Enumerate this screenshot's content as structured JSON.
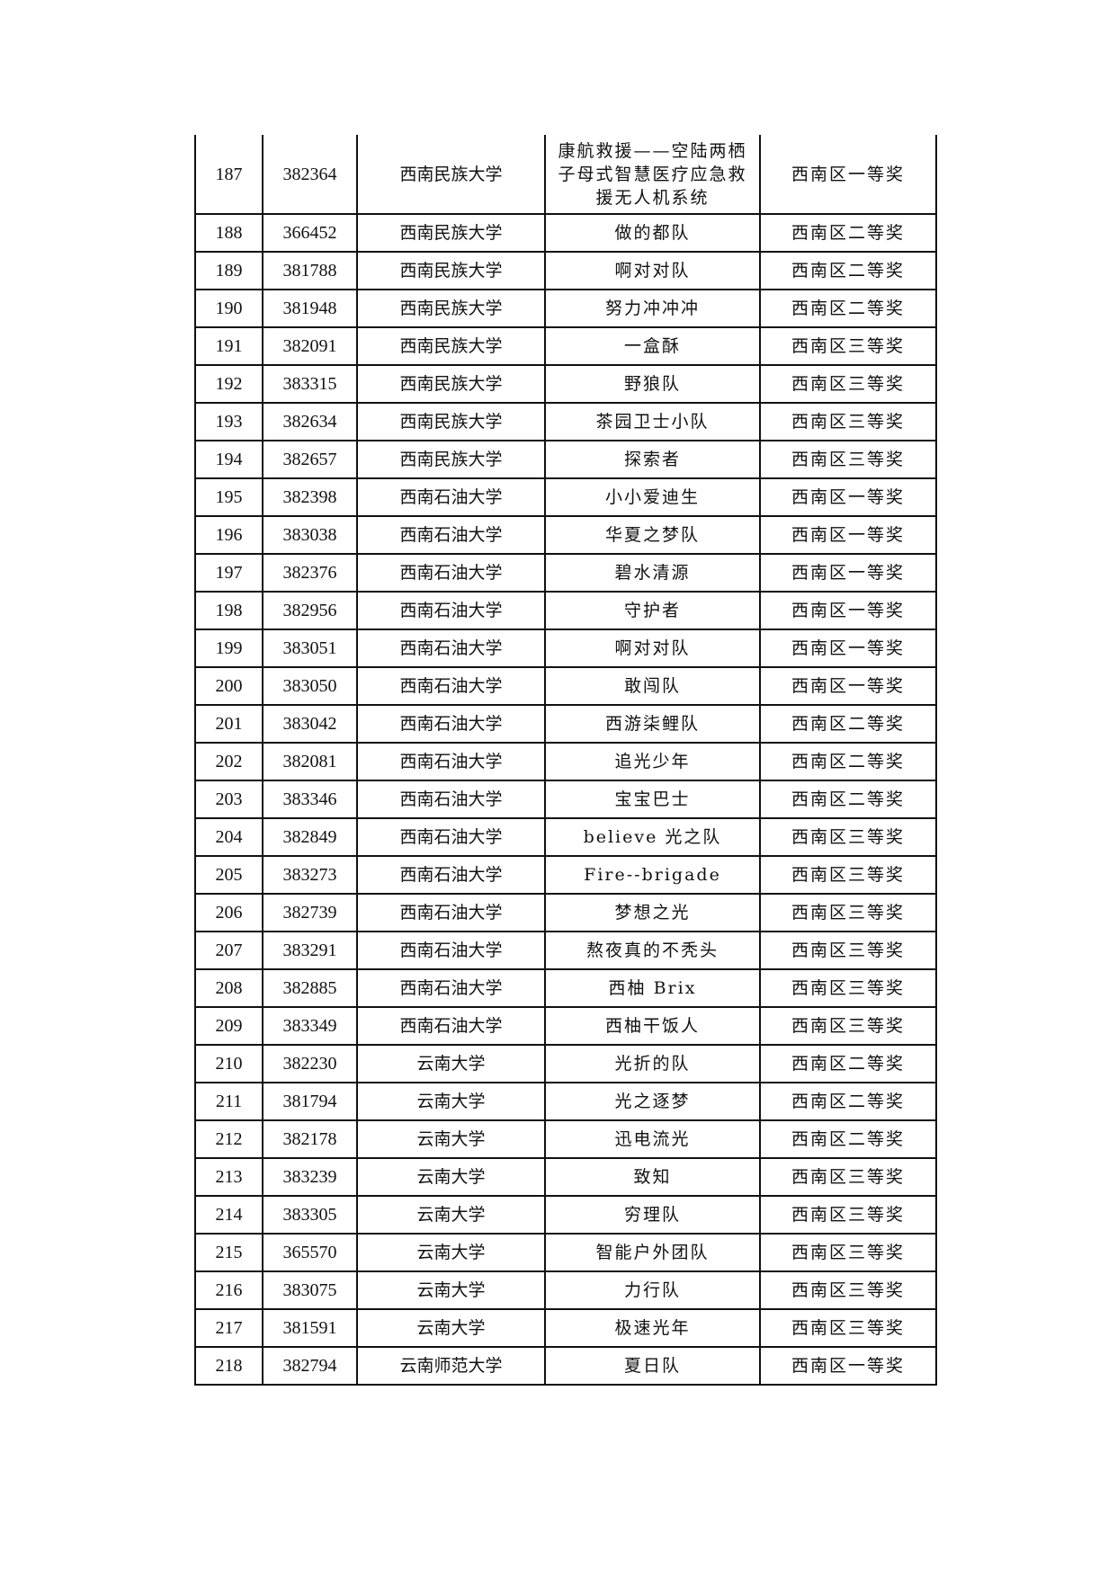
{
  "table": {
    "rows": [
      [
        "187",
        "382364",
        "西南民族大学",
        "康航救援——空陆两栖子母式智慧医疗应急救援无人机系统",
        "西南区一等奖"
      ],
      [
        "188",
        "366452",
        "西南民族大学",
        "做的都队",
        "西南区二等奖"
      ],
      [
        "189",
        "381788",
        "西南民族大学",
        "啊对对队",
        "西南区二等奖"
      ],
      [
        "190",
        "381948",
        "西南民族大学",
        "努力冲冲冲",
        "西南区二等奖"
      ],
      [
        "191",
        "382091",
        "西南民族大学",
        "一盒酥",
        "西南区三等奖"
      ],
      [
        "192",
        "383315",
        "西南民族大学",
        "野狼队",
        "西南区三等奖"
      ],
      [
        "193",
        "382634",
        "西南民族大学",
        "茶园卫士小队",
        "西南区三等奖"
      ],
      [
        "194",
        "382657",
        "西南民族大学",
        "探索者",
        "西南区三等奖"
      ],
      [
        "195",
        "382398",
        "西南石油大学",
        "小小爱迪生",
        "西南区一等奖"
      ],
      [
        "196",
        "383038",
        "西南石油大学",
        "华夏之梦队",
        "西南区一等奖"
      ],
      [
        "197",
        "382376",
        "西南石油大学",
        "碧水清源",
        "西南区一等奖"
      ],
      [
        "198",
        "382956",
        "西南石油大学",
        "守护者",
        "西南区一等奖"
      ],
      [
        "199",
        "383051",
        "西南石油大学",
        "啊对对队",
        "西南区一等奖"
      ],
      [
        "200",
        "383050",
        "西南石油大学",
        "敢闯队",
        "西南区一等奖"
      ],
      [
        "201",
        "383042",
        "西南石油大学",
        "西游柒鲤队",
        "西南区二等奖"
      ],
      [
        "202",
        "382081",
        "西南石油大学",
        "追光少年",
        "西南区二等奖"
      ],
      [
        "203",
        "383346",
        "西南石油大学",
        "宝宝巴士",
        "西南区二等奖"
      ],
      [
        "204",
        "382849",
        "西南石油大学",
        "believe 光之队",
        "西南区三等奖"
      ],
      [
        "205",
        "383273",
        "西南石油大学",
        "Fire--brigade",
        "西南区三等奖"
      ],
      [
        "206",
        "382739",
        "西南石油大学",
        "梦想之光",
        "西南区三等奖"
      ],
      [
        "207",
        "383291",
        "西南石油大学",
        "熬夜真的不秃头",
        "西南区三等奖"
      ],
      [
        "208",
        "382885",
        "西南石油大学",
        "西柚 Brix",
        "西南区三等奖"
      ],
      [
        "209",
        "383349",
        "西南石油大学",
        "西柚干饭人",
        "西南区三等奖"
      ],
      [
        "210",
        "382230",
        "云南大学",
        "光折的队",
        "西南区二等奖"
      ],
      [
        "211",
        "381794",
        "云南大学",
        "光之逐梦",
        "西南区二等奖"
      ],
      [
        "212",
        "382178",
        "云南大学",
        "迅电流光",
        "西南区二等奖"
      ],
      [
        "213",
        "383239",
        "云南大学",
        "致知",
        "西南区三等奖"
      ],
      [
        "214",
        "383305",
        "云南大学",
        "穷理队",
        "西南区三等奖"
      ],
      [
        "215",
        "365570",
        "云南大学",
        "智能户外团队",
        "西南区三等奖"
      ],
      [
        "216",
        "383075",
        "云南大学",
        "力行队",
        "西南区三等奖"
      ],
      [
        "217",
        "381591",
        "云南大学",
        "极速光年",
        "西南区三等奖"
      ],
      [
        "218",
        "382794",
        "云南师范大学",
        "夏日队",
        "西南区一等奖"
      ]
    ]
  }
}
